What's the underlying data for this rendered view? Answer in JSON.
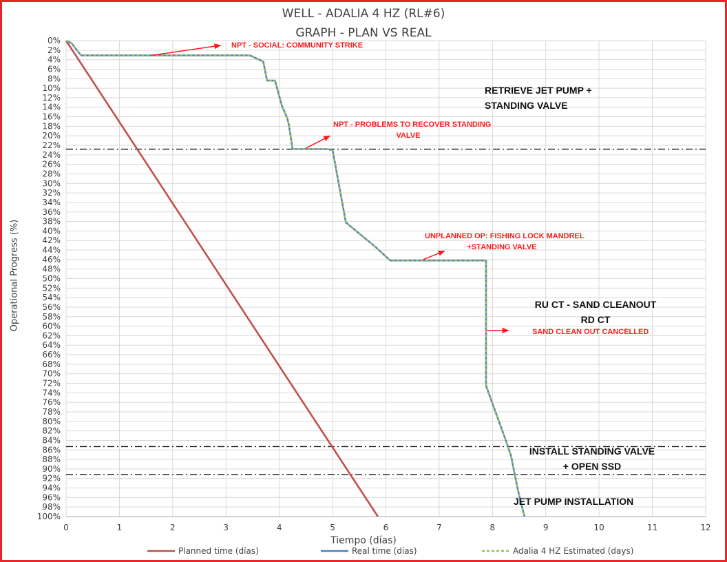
{
  "chart_data": {
    "type": "line",
    "title": "WELL -  ADALIA 4 HZ (RL#6)",
    "subtitle": "GRAPH  - PLAN VS REAL",
    "xlabel": "Tiempo (días)",
    "ylabel": "Operational Progress (%)",
    "xlim": [
      0,
      12
    ],
    "ylim": [
      0,
      100
    ],
    "y_inverted": true,
    "grid": true,
    "legend_position": "bottom",
    "x_ticks": [
      "0",
      "1",
      "2",
      "3",
      "4",
      "5",
      "6",
      "7",
      "8",
      "9",
      "10",
      "11",
      "12"
    ],
    "y_ticks": [
      "0%",
      "2%",
      "4%",
      "6%",
      "8%",
      "10%",
      "12%",
      "14%",
      "16%",
      "18%",
      "20%",
      "22%",
      "24%",
      "26%",
      "28%",
      "30%",
      "32%",
      "34%",
      "36%",
      "38%",
      "40%",
      "42%",
      "44%",
      "46%",
      "48%",
      "50%",
      "52%",
      "54%",
      "56%",
      "58%",
      "60%",
      "62%",
      "64%",
      "66%",
      "68%",
      "70%",
      "72%",
      "74%",
      "76%",
      "78%",
      "80%",
      "82%",
      "84%",
      "86%",
      "88%",
      "90%",
      "92%",
      "94%",
      "96%",
      "98%",
      "100%"
    ],
    "series": [
      {
        "name": "Planned time (días)",
        "color": "#c0504d",
        "style": "solid",
        "points": [
          [
            0,
            0
          ],
          [
            5.85,
            100
          ]
        ]
      },
      {
        "name": "Real time (días)",
        "color": "#4f81bd",
        "style": "solid",
        "points": [
          [
            0,
            0
          ],
          [
            0.1,
            0.5
          ],
          [
            0.28,
            3.1
          ],
          [
            3.45,
            3.1
          ],
          [
            3.7,
            4.4
          ],
          [
            3.77,
            8.4
          ],
          [
            3.92,
            8.4
          ],
          [
            4.05,
            13.7
          ],
          [
            4.15,
            16.3
          ],
          [
            4.18,
            17.7
          ],
          [
            4.25,
            22.8
          ],
          [
            4.9,
            22.8
          ],
          [
            5.0,
            23.0
          ],
          [
            5.25,
            38.2
          ],
          [
            5.8,
            43.3
          ],
          [
            6.08,
            46.2
          ],
          [
            7.88,
            46.2
          ],
          [
            7.88,
            72.5
          ],
          [
            8.27,
            84.6
          ],
          [
            8.35,
            87.3
          ],
          [
            8.48,
            94.6
          ],
          [
            8.6,
            100
          ]
        ]
      },
      {
        "name": "Adalia 4 HZ Estimated (days)",
        "color": "#9bbb59",
        "style": "dashed",
        "points": [
          [
            0,
            0
          ],
          [
            0.1,
            0.5
          ],
          [
            0.28,
            3.1
          ],
          [
            3.45,
            3.1
          ],
          [
            3.7,
            4.4
          ],
          [
            3.77,
            8.4
          ],
          [
            3.92,
            8.4
          ],
          [
            4.05,
            13.7
          ],
          [
            4.15,
            16.3
          ],
          [
            4.18,
            17.7
          ],
          [
            4.25,
            22.8
          ],
          [
            4.9,
            22.8
          ],
          [
            5.0,
            23.0
          ],
          [
            5.25,
            38.2
          ],
          [
            5.8,
            43.3
          ],
          [
            6.08,
            46.2
          ],
          [
            7.88,
            46.2
          ],
          [
            7.88,
            72.5
          ],
          [
            8.27,
            84.6
          ],
          [
            8.35,
            87.3
          ],
          [
            8.48,
            94.6
          ],
          [
            8.6,
            100
          ]
        ]
      }
    ],
    "reference_lines": [
      {
        "y": 22.8,
        "x_from": 0,
        "x_to": 12,
        "style": "dash-dot"
      },
      {
        "y": 85.3,
        "x_from": 0,
        "x_to": 12,
        "style": "dash-dot"
      },
      {
        "y": 91.2,
        "x_from": 0,
        "x_to": 12,
        "style": "dash-dot"
      }
    ],
    "annotation_arrows": [
      {
        "from": [
          1.6,
          3.1
        ],
        "to": [
          2.9,
          1.0
        ]
      },
      {
        "from": [
          4.5,
          22.6
        ],
        "to": [
          4.95,
          20.0
        ]
      },
      {
        "from": [
          6.7,
          46.0
        ],
        "to": [
          7.1,
          44.2
        ]
      },
      {
        "from": [
          7.9,
          60.9
        ],
        "to": [
          8.3,
          60.9
        ]
      }
    ]
  },
  "annotations": {
    "npt_social": "NPT - SOCIAL: COMMUNITY STRIKE",
    "npt_recover_1": "NPT - PROBLEMS TO RECOVER  STANDING",
    "npt_recover_2": "VALVE",
    "unplanned_1": "UNPLANNED OP: FISHING LOCK MANDREL",
    "unplanned_2": "+STANDING VALVE",
    "sand_cancelled": "SAND CLEAN OUT CANCELLED",
    "retrieve_1": "RETRIEVE JET PUMP +",
    "retrieve_2": "STANDING VALVE",
    "ruct_1": "RU CT  - SAND CLEANOUT",
    "ruct_2": "RD CT",
    "install_1": "INSTALL STANDING VALVE",
    "install_2": "+ OPEN SSD",
    "jet_pump": "JET PUMP INSTALLATION"
  },
  "colors": {
    "frame": "#e8262a",
    "grid": "#d9d9d9",
    "annotation_red": "#ff1a1a",
    "annotation_black": "#111111"
  }
}
